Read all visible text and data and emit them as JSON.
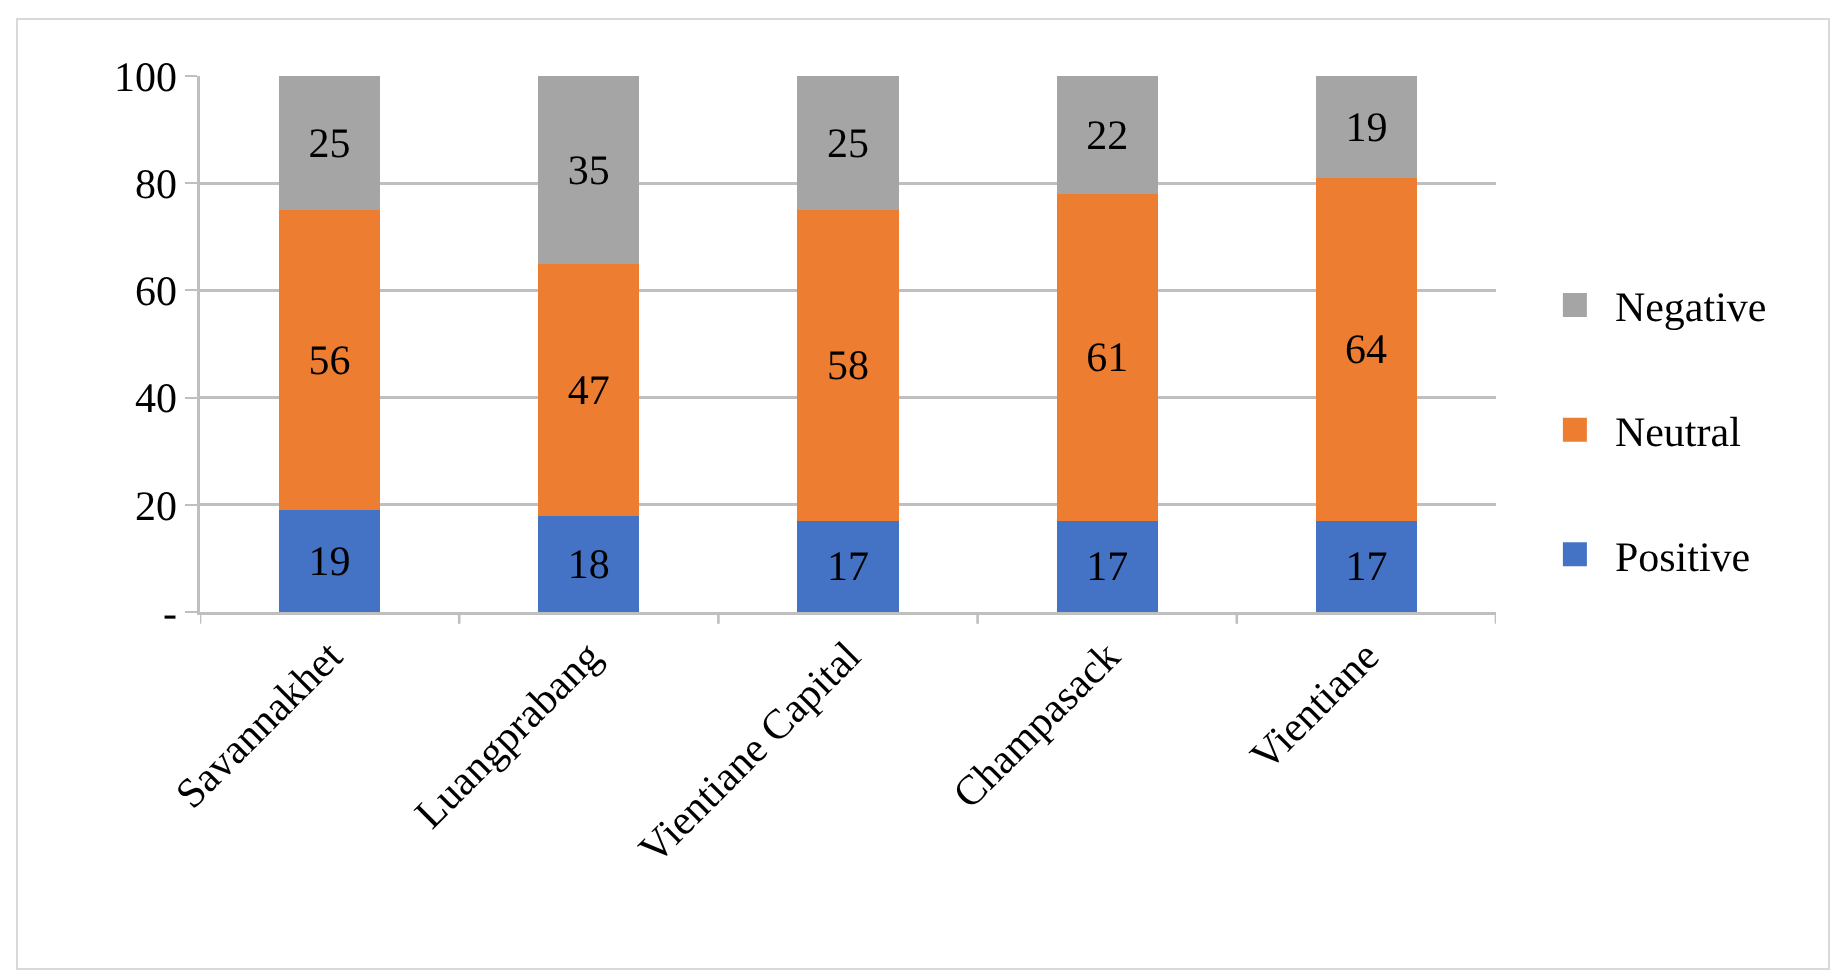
{
  "chart_data": {
    "type": "bar",
    "stacked": true,
    "categories": [
      "Savannakhet",
      "Luangprabang",
      "Vientiane Capital",
      "Champasack",
      "Vientiane"
    ],
    "series": [
      {
        "name": "Positive",
        "color": "#4472c4",
        "values": [
          19,
          18,
          17,
          17,
          17
        ]
      },
      {
        "name": "Neutral",
        "color": "#ed7d31",
        "values": [
          56,
          47,
          58,
          61,
          64
        ]
      },
      {
        "name": "Negative",
        "color": "#a5a5a5",
        "values": [
          25,
          35,
          25,
          22,
          19
        ]
      }
    ],
    "ylim": [
      0,
      100
    ],
    "yticks": [
      {
        "value": 0,
        "label": "-"
      },
      20,
      40,
      60,
      80,
      100
    ],
    "grid": "y",
    "legend": "right",
    "data_labels": true
  }
}
